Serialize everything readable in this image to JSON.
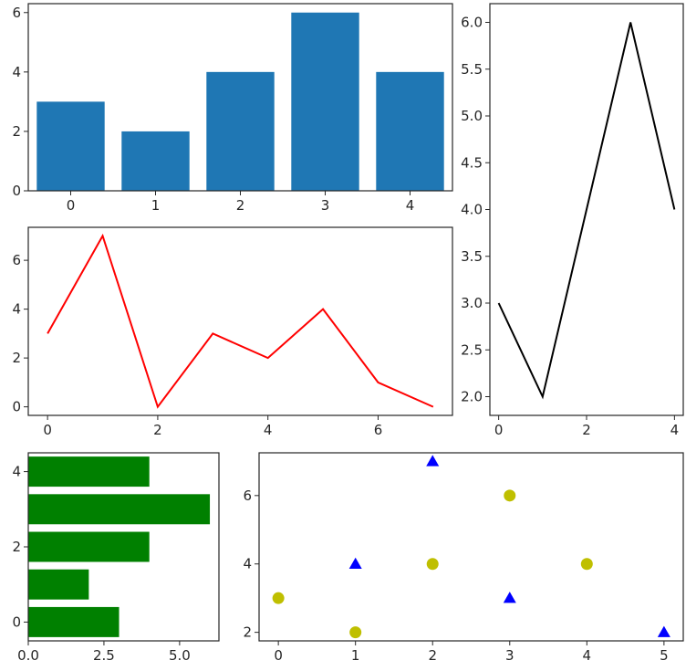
{
  "chart_data": [
    {
      "type": "bar",
      "panel": "top-left",
      "categories": [
        "0",
        "1",
        "2",
        "3",
        "4"
      ],
      "values": [
        3,
        2,
        4,
        6,
        4
      ],
      "color": "#1f77b4",
      "ylim": [
        0,
        6.3
      ],
      "xticks": [
        0,
        1,
        2,
        3,
        4
      ],
      "yticks": [
        0,
        2,
        4,
        6
      ],
      "title": "",
      "xlabel": "",
      "ylabel": "",
      "grid": false
    },
    {
      "type": "line",
      "panel": "middle-left",
      "x": [
        0,
        1,
        2,
        3,
        4,
        5,
        6,
        7
      ],
      "y": [
        3,
        7,
        0,
        3,
        2,
        4,
        1,
        0
      ],
      "color": "#ff0000",
      "xlim": [
        -0.35,
        7.35
      ],
      "ylim": [
        -0.35,
        7.35
      ],
      "xticks": [
        0,
        2,
        4,
        6
      ],
      "yticks": [
        0,
        2,
        4,
        6
      ],
      "title": "",
      "xlabel": "",
      "ylabel": "",
      "grid": false
    },
    {
      "type": "line",
      "panel": "right",
      "x": [
        0,
        1,
        2,
        3,
        4
      ],
      "y": [
        3,
        2,
        4,
        6,
        4
      ],
      "color": "#000000",
      "xlim": [
        -0.2,
        4.2
      ],
      "ylim": [
        1.8,
        6.2
      ],
      "xticks": [
        0,
        2,
        4
      ],
      "yticks": [
        2.0,
        2.5,
        3.0,
        3.5,
        4.0,
        4.5,
        5.0,
        5.5,
        6.0
      ],
      "ytick_labels": [
        "2.0",
        "2.5",
        "3.0",
        "3.5",
        "4.0",
        "4.5",
        "5.0",
        "5.5",
        "6.0"
      ],
      "title": "",
      "xlabel": "",
      "ylabel": "",
      "grid": false
    },
    {
      "type": "bar",
      "orientation": "horizontal",
      "panel": "bottom-left",
      "categories": [
        "0",
        "1",
        "2",
        "3",
        "4"
      ],
      "values": [
        3,
        2,
        4,
        6,
        4
      ],
      "color": "#008000",
      "xlim": [
        0,
        6.3
      ],
      "xticks": [
        0,
        2.5,
        5.0
      ],
      "xtick_labels": [
        "0.0",
        "2.5",
        "5.0"
      ],
      "yticks": [
        0,
        2,
        4
      ],
      "title": "",
      "xlabel": "",
      "ylabel": "",
      "grid": false
    },
    {
      "type": "scatter",
      "panel": "bottom-right",
      "series": [
        {
          "marker": "circle",
          "color": "#bfbf00",
          "x": [
            0,
            1,
            2,
            3,
            4
          ],
          "y": [
            3,
            2,
            4,
            6,
            4
          ]
        },
        {
          "marker": "triangle",
          "color": "#0000ff",
          "x": [
            1,
            2,
            3,
            5
          ],
          "y": [
            4,
            7,
            3,
            2
          ]
        }
      ],
      "xlim": [
        -0.25,
        5.25
      ],
      "ylim": [
        1.75,
        7.25
      ],
      "xticks": [
        0,
        1,
        2,
        3,
        4,
        5
      ],
      "yticks": [
        2,
        4,
        6
      ],
      "title": "",
      "xlabel": "",
      "ylabel": "",
      "grid": false
    }
  ]
}
